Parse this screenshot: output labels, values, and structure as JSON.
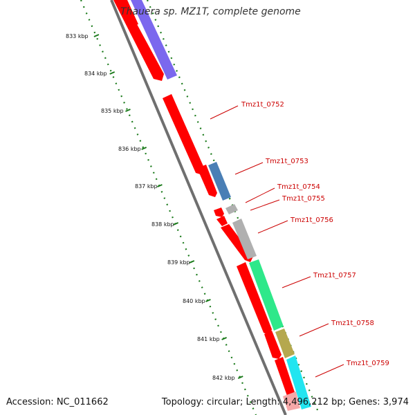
{
  "title": "Thauera sp. MZ1T, complete genome",
  "footer": {
    "accession": "Accession: NC_011662",
    "topology": "Topology: circular; Length: 4,496,212 bp; Genes: 3,974"
  },
  "ruler_labels": [
    "833 kbp",
    "834 kbp",
    "835 kbp",
    "836 kbp",
    "837 kbp",
    "838 kbp",
    "839 kbp",
    "840 kbp",
    "841 kbp",
    "842 kbp"
  ],
  "gene_labels": [
    "Tmz1t_0752",
    "Tmz1t_0753",
    "Tmz1t_0754",
    "Tmz1t_0755",
    "Tmz1t_0756",
    "Tmz1t_0757",
    "Tmz1t_0758",
    "Tmz1t_0759"
  ],
  "colors": {
    "cds": "#ff0000",
    "backbone": "#777777",
    "ruler": "#1a7a1a",
    "label": "#cc0000",
    "feature_purple": "#7b68ee",
    "feature_steelblue": "#4a7fb5",
    "feature_gray": "#b0b0b0",
    "feature_green": "#2ee88a",
    "feature_olive": "#b5a84e",
    "feature_cyan": "#22e5f0",
    "feature_pink": "#f6a8a8"
  }
}
